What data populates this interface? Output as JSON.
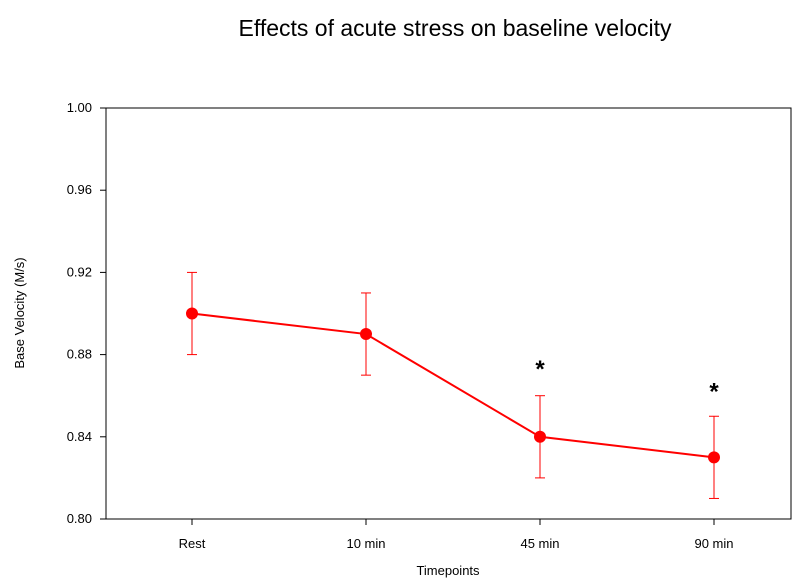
{
  "chart_data": {
    "type": "line",
    "title": "Effects of acute stress on baseline velocity",
    "xlabel": "Timepoints",
    "ylabel": "Base Velocity (M/s)",
    "categories": [
      "Rest",
      "10 min",
      "45 min",
      "90 min"
    ],
    "series": [
      {
        "values": [
          0.9,
          0.89,
          0.84,
          0.83
        ],
        "error_low": [
          0.88,
          0.87,
          0.82,
          0.81
        ],
        "error_high": [
          0.92,
          0.91,
          0.86,
          0.85
        ],
        "color": "#ff0000"
      }
    ],
    "ylim": [
      0.8,
      1.0
    ],
    "yticks": [
      "0.80",
      "0.84",
      "0.88",
      "0.92",
      "0.96",
      "1.00"
    ],
    "annotations": [
      {
        "category": "45 min",
        "text": "*",
        "y": 0.874
      },
      {
        "category": "90 min",
        "text": "*",
        "y": 0.863
      }
    ],
    "grid": false,
    "legend": "none"
  }
}
